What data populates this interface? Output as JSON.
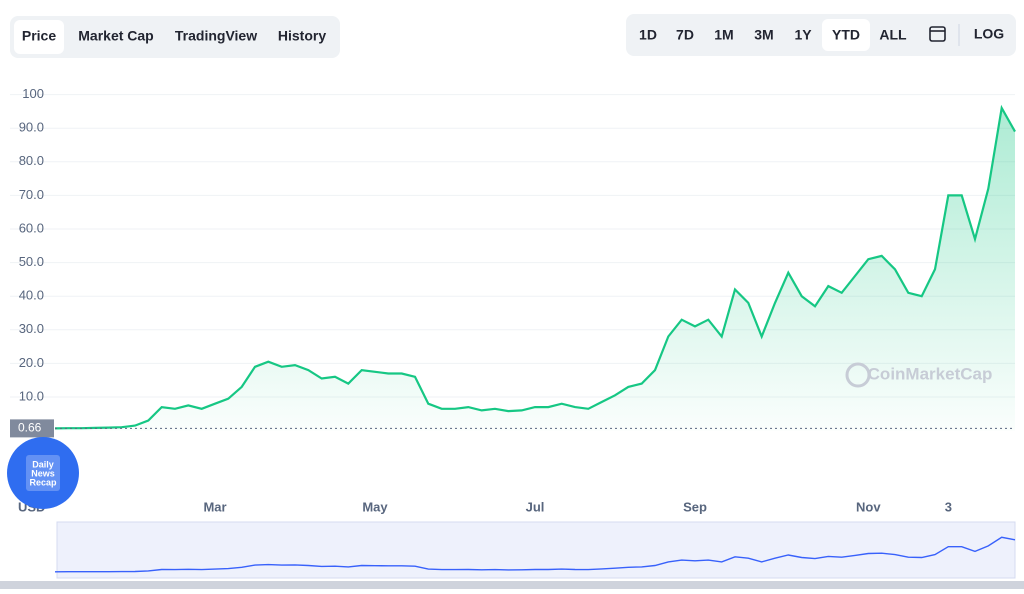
{
  "tabs": [
    "Price",
    "Market Cap",
    "TradingView",
    "History"
  ],
  "ranges": [
    "1D",
    "7D",
    "1M",
    "3M",
    "1Y",
    "YTD",
    "ALL"
  ],
  "log_button": "LOG",
  "watermark": "CoinMarketCap",
  "currency_label": "USD",
  "badge": [
    "Daily",
    "News",
    "Recap"
  ],
  "chart_data": {
    "type": "line",
    "categories": [
      null,
      null,
      null,
      null,
      null,
      null,
      null,
      null,
      null,
      null,
      null,
      null,
      "Mar",
      null,
      null,
      null,
      null,
      null,
      null,
      null,
      null,
      null,
      null,
      null,
      "May",
      null,
      null,
      null,
      null,
      null,
      null,
      null,
      null,
      null,
      null,
      null,
      "Jul",
      null,
      null,
      null,
      null,
      null,
      null,
      null,
      null,
      null,
      null,
      null,
      "Sep",
      null,
      null,
      null,
      null,
      null,
      null,
      null,
      null,
      null,
      null,
      null,
      null,
      "Nov",
      null,
      null,
      null,
      null,
      null,
      "3",
      null,
      null,
      null,
      null,
      null
    ],
    "series": [
      {
        "name": "Price",
        "color": "#16c784",
        "values": [
          0.66,
          0.7,
          0.7,
          0.8,
          0.9,
          1.0,
          1.5,
          3.0,
          7.0,
          6.5,
          7.5,
          6.5,
          8.0,
          9.5,
          13,
          19,
          20.5,
          19,
          19.5,
          18,
          15.5,
          16,
          14,
          18,
          17.5,
          17,
          17,
          16,
          8,
          6.5,
          6.5,
          7,
          6,
          6.5,
          5.8,
          6,
          7,
          7,
          8,
          7,
          6.5,
          8.5,
          10.5,
          13,
          14,
          18,
          28,
          33,
          31,
          33,
          28,
          42,
          38,
          28,
          38,
          47,
          40,
          37,
          43,
          41,
          46,
          51,
          52,
          48,
          41,
          40,
          48,
          70,
          70,
          57,
          72,
          96,
          89
        ]
      }
    ],
    "ylim": [
      0,
      105
    ],
    "yticks": [
      {
        "value": 10,
        "label": "10.0"
      },
      {
        "value": 20,
        "label": "20.0"
      },
      {
        "value": 30,
        "label": "30.0"
      },
      {
        "value": 40,
        "label": "40.0"
      },
      {
        "value": 50,
        "label": "50.0"
      },
      {
        "value": 60,
        "label": "60.0"
      },
      {
        "value": 70,
        "label": "70.0"
      },
      {
        "value": 80,
        "label": "80.0"
      },
      {
        "value": 90,
        "label": "90.0"
      },
      100
    ],
    "reference_value": 0.66,
    "grid": true
  }
}
